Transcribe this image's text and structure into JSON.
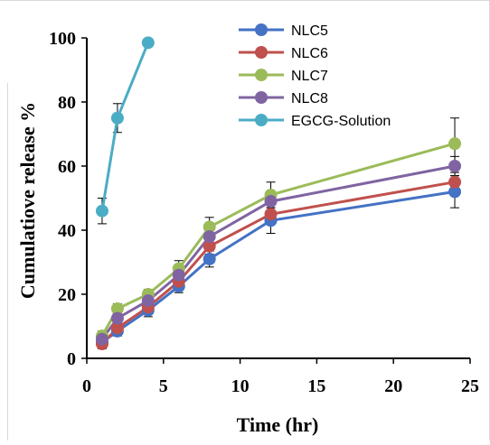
{
  "chart_data": {
    "type": "line",
    "title": "",
    "xlabel": "Time (hr)",
    "ylabel": "Cumulatiove release %",
    "xlim": [
      0,
      25
    ],
    "ylim": [
      0,
      100
    ],
    "x_ticks": [
      0,
      5,
      10,
      15,
      20,
      25
    ],
    "y_ticks": [
      0,
      20,
      40,
      60,
      80,
      100
    ],
    "grid": false,
    "legend_position": "top-right",
    "series": [
      {
        "name": "NLC5",
        "color": "#4472C4",
        "x": [
          1,
          2,
          4,
          6,
          8,
          12,
          24
        ],
        "y": [
          5,
          8.5,
          15,
          22.5,
          31,
          43,
          52
        ],
        "err": [
          1.5,
          1.5,
          2,
          2,
          2.5,
          4,
          5
        ]
      },
      {
        "name": "NLC6",
        "color": "#C0504D",
        "x": [
          1,
          2,
          4,
          6,
          8,
          12,
          24
        ],
        "y": [
          4.5,
          9.5,
          16,
          24,
          35,
          45,
          55
        ],
        "err": [
          1.5,
          1.5,
          2,
          2,
          2.5,
          3,
          3
        ]
      },
      {
        "name": "NLC7",
        "color": "#9BBB59",
        "x": [
          1,
          2,
          4,
          6,
          8,
          12,
          24
        ],
        "y": [
          7,
          15.5,
          20,
          28,
          41,
          51,
          67
        ],
        "err": [
          1.5,
          1.5,
          1.5,
          2.5,
          3,
          4,
          8
        ]
      },
      {
        "name": "NLC8",
        "color": "#8064A2",
        "x": [
          1,
          2,
          4,
          6,
          8,
          12,
          24
        ],
        "y": [
          6,
          12.5,
          18,
          26,
          38,
          49,
          60
        ],
        "err": [
          1.5,
          1.5,
          1.5,
          2,
          2.5,
          3,
          3
        ]
      },
      {
        "name": "EGCG-Solution",
        "color": "#4BACC6",
        "x": [
          1,
          2,
          4
        ],
        "y": [
          46,
          75,
          98.5
        ],
        "err": [
          4,
          4.5,
          1
        ]
      }
    ]
  }
}
